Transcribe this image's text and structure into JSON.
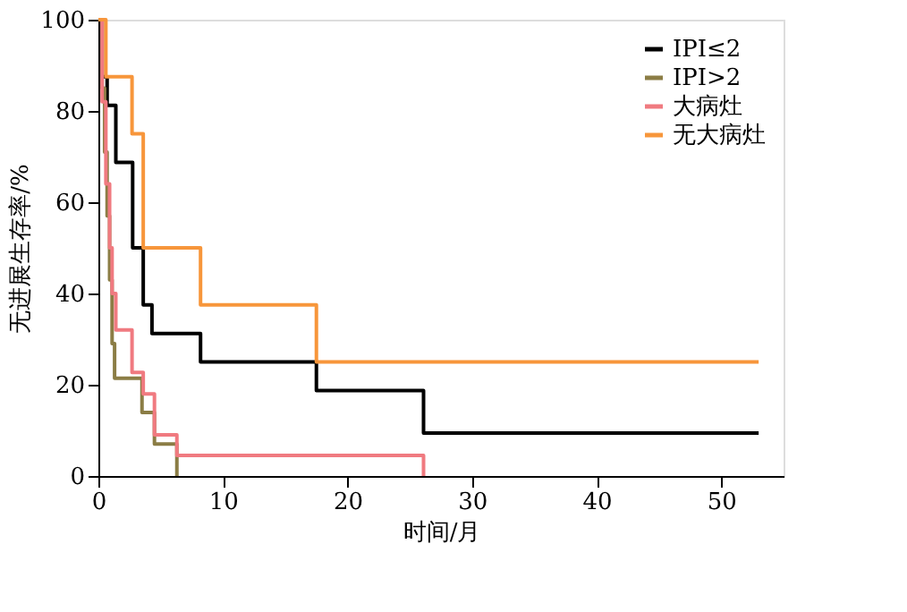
{
  "chart_data": {
    "type": "step",
    "xlabel": "时间/月",
    "ylabel": "无进展生存率/%",
    "xlim": [
      0,
      55
    ],
    "xticks": [
      0,
      10,
      20,
      30,
      40,
      50
    ],
    "ylim": [
      0,
      100
    ],
    "yticks": [
      0,
      20,
      40,
      60,
      80,
      100
    ],
    "grid": false,
    "legend": "top right",
    "marker": "none",
    "line_style": "solid",
    "series": [
      {
        "name": "IPI≤2",
        "color": "#000000",
        "x": [
          0,
          0.3,
          0.7,
          1.4,
          2.75,
          3.6,
          4.3,
          8.2,
          17.5,
          26.1,
          53
        ],
        "values": [
          100,
          87.5,
          81.25,
          68.75,
          50,
          37.5,
          31.25,
          25,
          18.75,
          9.4,
          9.4
        ]
      },
      {
        "name": "IPI>2",
        "color": "#8b7d45",
        "x": [
          0,
          0.3,
          0.5,
          0.7,
          0.9,
          1.1,
          1.3,
          3.5,
          4.5,
          6.3
        ],
        "values": [
          100,
          85,
          71,
          57,
          43,
          29,
          21.4,
          13.9,
          7,
          0
        ]
      },
      {
        "name": "大病灶",
        "color": "#f07a80",
        "x": [
          0,
          0.3,
          0.6,
          0.9,
          1.1,
          1.4,
          2.7,
          3.6,
          4.5,
          6.3,
          26.1
        ],
        "values": [
          100,
          82,
          64,
          50,
          40,
          32,
          22.7,
          18,
          9,
          4.5,
          0
        ]
      },
      {
        "name": "无大病灶",
        "color": "#f7963b",
        "x": [
          0,
          0.6,
          2.7,
          3.6,
          8.2,
          17.5,
          53
        ],
        "values": [
          100,
          87.5,
          75,
          50,
          37.5,
          25,
          25
        ]
      }
    ]
  }
}
